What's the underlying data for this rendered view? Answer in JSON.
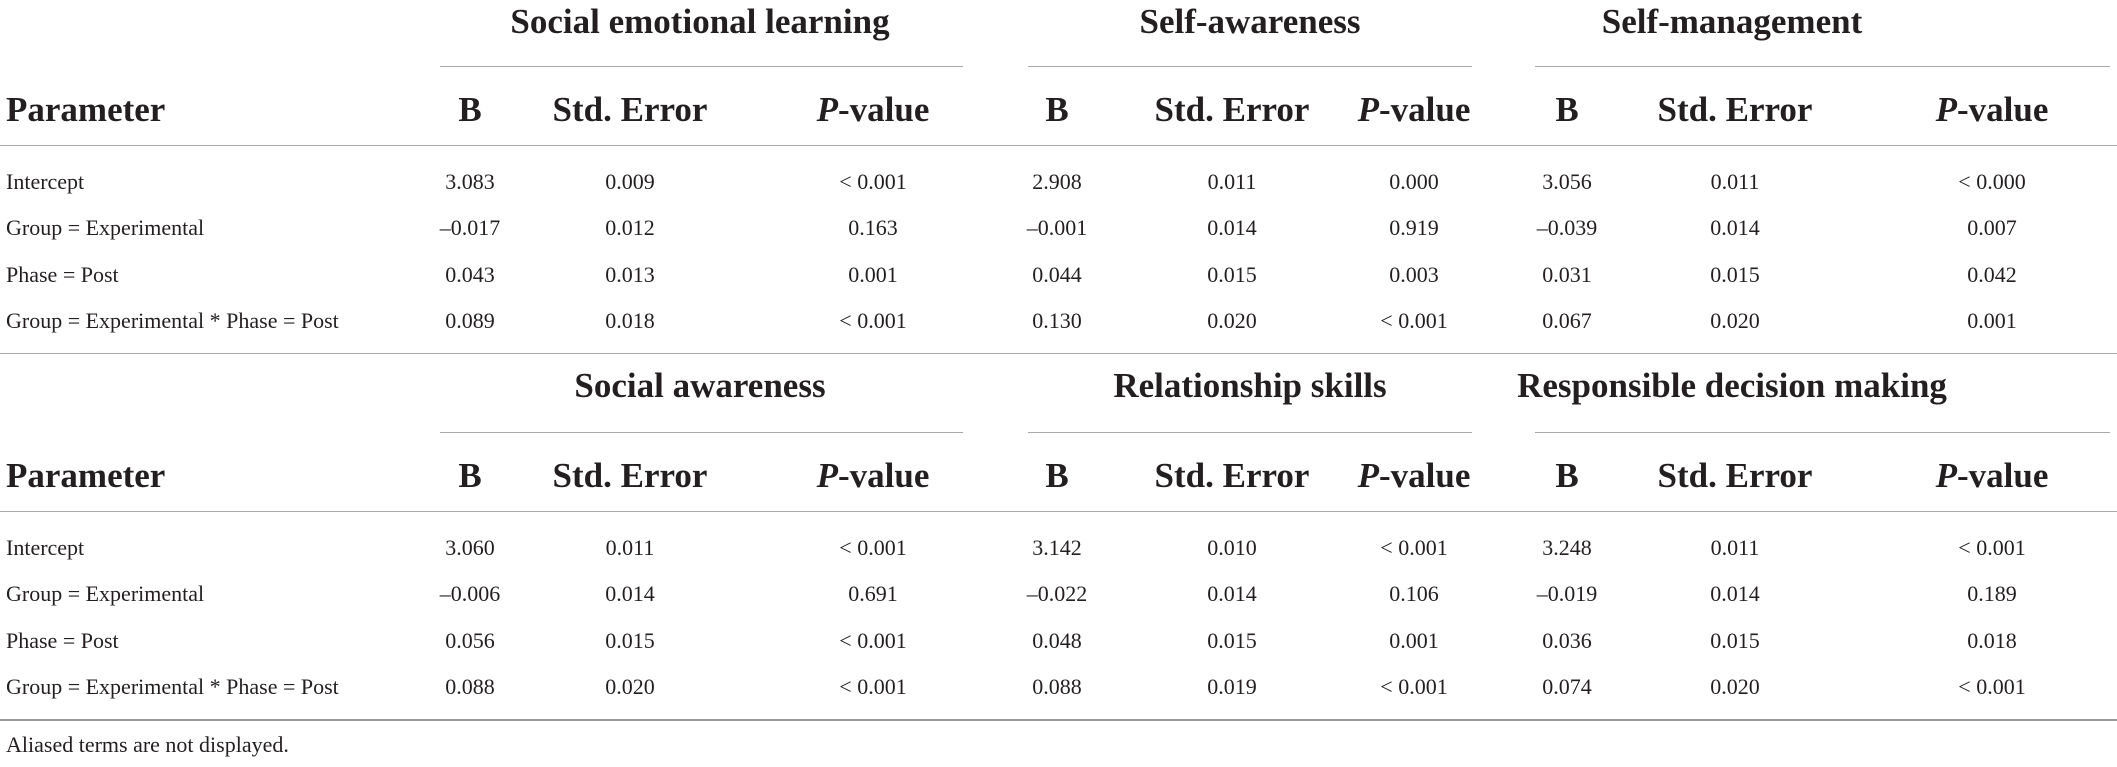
{
  "param_header": "Parameter",
  "col_headers": {
    "b": "B",
    "se": "Std. Error",
    "p_italic": "P",
    "p_rest": "-value"
  },
  "rows": [
    "Intercept",
    "Group = Experimental",
    "Phase = Post",
    "Group = Experimental * Phase = Post"
  ],
  "panels": [
    {
      "groups": [
        {
          "title": "Social emotional learning",
          "cells": [
            [
              "3.083",
              "0.009",
              "< 0.001"
            ],
            [
              "–0.017",
              "0.012",
              "0.163"
            ],
            [
              "0.043",
              "0.013",
              "0.001"
            ],
            [
              "0.089",
              "0.018",
              "< 0.001"
            ]
          ]
        },
        {
          "title": "Self-awareness",
          "cells": [
            [
              "2.908",
              "0.011",
              "0.000"
            ],
            [
              "–0.001",
              "0.014",
              "0.919"
            ],
            [
              "0.044",
              "0.015",
              "0.003"
            ],
            [
              "0.130",
              "0.020",
              "< 0.001"
            ]
          ]
        },
        {
          "title": "Self-management",
          "cells": [
            [
              "3.056",
              "0.011",
              "< 0.000"
            ],
            [
              "–0.039",
              "0.014",
              "0.007"
            ],
            [
              "0.031",
              "0.015",
              "0.042"
            ],
            [
              "0.067",
              "0.020",
              "0.001"
            ]
          ]
        }
      ]
    },
    {
      "groups": [
        {
          "title": "Social awareness",
          "cells": [
            [
              "3.060",
              "0.011",
              "< 0.001"
            ],
            [
              "–0.006",
              "0.014",
              "0.691"
            ],
            [
              "0.056",
              "0.015",
              "< 0.001"
            ],
            [
              "0.088",
              "0.020",
              "< 0.001"
            ]
          ]
        },
        {
          "title": "Relationship skills",
          "cells": [
            [
              "3.142",
              "0.010",
              "< 0.001"
            ],
            [
              "–0.022",
              "0.014",
              "0.106"
            ],
            [
              "0.048",
              "0.015",
              "0.001"
            ],
            [
              "0.088",
              "0.019",
              "< 0.001"
            ]
          ]
        },
        {
          "title": "Responsible decision making",
          "cells": [
            [
              "3.248",
              "0.011",
              "< 0.001"
            ],
            [
              "–0.019",
              "0.014",
              "0.189"
            ],
            [
              "0.036",
              "0.015",
              "0.018"
            ],
            [
              "0.074",
              "0.020",
              "< 0.001"
            ]
          ]
        }
      ]
    }
  ],
  "footnote": "Aliased terms are not displayed."
}
